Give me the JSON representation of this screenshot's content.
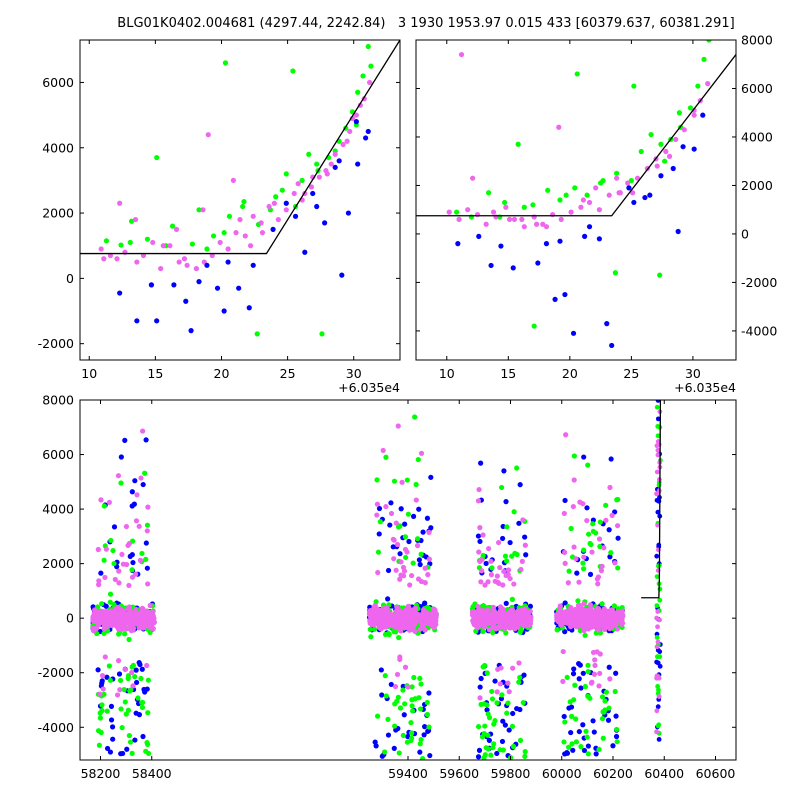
{
  "title": "BLG01K0402.004681 (4297.44, 2242.84)   3 1930 1953.97 0.015 433 [60379.637, 60381.291]",
  "colors": {
    "blue": "#0000ff",
    "green": "#00ff00",
    "violet": "#ee66ee",
    "model": "#000000"
  },
  "chart_data": [
    {
      "type": "scatter",
      "panel": "top-left zoom",
      "x_offset_label": "+6.035e4",
      "x_offset": 60350,
      "xlim": [
        9.3,
        33.5
      ],
      "ylim": [
        -2500,
        7300
      ],
      "xticks": [
        10,
        15,
        20,
        25,
        30
      ],
      "yticks": [
        -2000,
        0,
        2000,
        4000,
        6000
      ],
      "ytick_side": "left",
      "model_line": {
        "x": [
          9.3,
          23.4,
          33.5
        ],
        "y": [
          760,
          760,
          7300
        ]
      },
      "series": [
        {
          "color": "green",
          "x": [
            11.3,
            12.4,
            13.2,
            14.4,
            15.8,
            17.8,
            18.3,
            19.4,
            20.6,
            21.6,
            22.8,
            24.1,
            24.9,
            25.6,
            26.6,
            27.3,
            28.1,
            28.9,
            29.4,
            29.9,
            30.3,
            30.7,
            31.1,
            13.1,
            16.3,
            18.9,
            20.2,
            21.7,
            23.7,
            24.6,
            26.1,
            27.2,
            28.6,
            30.2,
            31.3,
            15.1,
            20.3,
            25.4,
            22.7,
            27.6
          ],
          "y": [
            1150,
            1020,
            1750,
            1200,
            1000,
            1050,
            2100,
            1300,
            1900,
            2200,
            1650,
            2500,
            3200,
            2200,
            3800,
            3300,
            3700,
            4200,
            4600,
            5100,
            5700,
            6200,
            7100,
            1100,
            1600,
            900,
            1400,
            2350,
            2100,
            2700,
            3000,
            3500,
            3900,
            4700,
            6500,
            3700,
            6600,
            6350,
            -1700,
            -1700
          ]
        },
        {
          "color": "violet",
          "x": [
            10.9,
            11.6,
            12.1,
            12.7,
            13.6,
            14.1,
            14.8,
            15.4,
            16.1,
            16.8,
            17.4,
            18.1,
            18.7,
            19.3,
            19.9,
            20.5,
            21.1,
            21.8,
            22.4,
            23.0,
            23.6,
            24.3,
            24.9,
            25.5,
            26.1,
            26.8,
            27.4,
            28.0,
            28.6,
            29.2,
            29.7,
            30.2,
            30.8,
            31.2,
            12.3,
            14.7,
            16.6,
            18.6,
            20.9,
            23.1,
            25.8,
            27.9,
            29.9,
            13.5,
            17.2,
            19.0,
            21.4,
            24.0,
            26.3,
            28.3,
            30.5,
            11.1,
            15.6,
            22.2,
            26.9,
            29.5
          ],
          "y": [
            900,
            700,
            600,
            800,
            500,
            700,
            1100,
            300,
            1000,
            500,
            400,
            300,
            500,
            700,
            1100,
            900,
            1400,
            1300,
            1900,
            1700,
            2200,
            1800,
            2100,
            2600,
            2400,
            2800,
            3100,
            3200,
            3800,
            4100,
            4500,
            5000,
            5500,
            6000,
            2300,
            -200,
            1500,
            2100,
            3000,
            1400,
            2900,
            3300,
            4900,
            1800,
            600,
            4400,
            1800,
            2300,
            2600,
            3500,
            5300,
            600,
            1000,
            1000,
            3100,
            4200
          ]
        },
        {
          "color": "blue",
          "x": [
            12.3,
            13.6,
            14.7,
            15.1,
            17.3,
            17.7,
            18.9,
            19.7,
            20.2,
            21.3,
            22.4,
            23.9,
            24.9,
            26.3,
            26.9,
            27.8,
            28.6,
            29.6,
            30.3,
            30.9,
            31.1,
            22.1,
            20.5,
            29.1,
            16.4,
            18.3,
            25.6,
            27.2,
            28.9,
            30.2,
            19.3
          ],
          "y": [
            -450,
            -1300,
            -200,
            -1300,
            -700,
            -1600,
            400,
            -300,
            -1000,
            -300,
            400,
            1500,
            2300,
            800,
            2600,
            1700,
            3400,
            2000,
            3500,
            4300,
            4500,
            -900,
            500,
            100,
            -200,
            -100,
            1900,
            2200,
            3600,
            4800,
            -2600
          ]
        }
      ]
    },
    {
      "type": "scatter",
      "panel": "top-right zoom",
      "x_offset_label": "+6.035e4",
      "x_offset": 60350,
      "xlim": [
        7.5,
        33.5
      ],
      "ylim": [
        -5200,
        8000
      ],
      "xticks": [
        10,
        15,
        20,
        25,
        30
      ],
      "yticks": [
        -4000,
        -2000,
        0,
        2000,
        4000,
        6000,
        8000
      ],
      "ytick_side": "right",
      "model_line": {
        "x": [
          7.5,
          23.4,
          33.5
        ],
        "y": [
          750,
          750,
          7400
        ]
      },
      "series": [
        {
          "color": "green",
          "x": [
            10.8,
            12.0,
            13.4,
            14.7,
            15.8,
            17.0,
            18.2,
            19.2,
            20.4,
            21.4,
            22.5,
            23.8,
            25.0,
            25.8,
            26.6,
            27.4,
            28.2,
            29.0,
            29.8,
            30.4,
            30.9,
            31.3,
            14.3,
            16.3,
            20.6,
            22.7,
            25.2,
            27.7,
            17.1,
            23.7,
            28.9,
            19.7,
            27.3
          ],
          "y": [
            900,
            700,
            1700,
            1300,
            3700,
            1200,
            1800,
            1400,
            1900,
            1600,
            2100,
            2500,
            2200,
            3400,
            4100,
            3700,
            3900,
            4400,
            5200,
            6100,
            7200,
            8000,
            700,
            1100,
            6600,
            2200,
            6100,
            3000,
            -3800,
            -1600,
            5000,
            1600,
            -1700
          ]
        },
        {
          "color": "violet",
          "x": [
            10.2,
            11.0,
            11.7,
            12.5,
            13.2,
            14.0,
            14.8,
            15.5,
            16.3,
            17.1,
            17.8,
            18.6,
            19.3,
            20.1,
            20.9,
            21.6,
            22.4,
            23.2,
            24.0,
            24.7,
            25.5,
            26.3,
            27.0,
            27.8,
            28.6,
            29.3,
            30.1,
            30.6,
            31.2,
            12.1,
            16.1,
            19.1,
            22.1,
            25.1,
            28.1,
            11.2,
            15.1,
            18.1,
            21.1,
            24.1,
            27.1,
            30.1,
            13.8,
            17.3,
            23.8
          ],
          "y": [
            900,
            600,
            1000,
            800,
            400,
            700,
            1100,
            600,
            300,
            700,
            400,
            800,
            600,
            900,
            1100,
            1300,
            1000,
            1600,
            1700,
            2100,
            2300,
            2700,
            3100,
            3400,
            3900,
            4300,
            4900,
            5500,
            6200,
            2300,
            600,
            4400,
            1900,
            1700,
            3200,
            7400,
            600,
            300,
            1400,
            1700,
            2800,
            5100,
            900,
            400,
            2300
          ]
        },
        {
          "color": "blue",
          "x": [
            10.9,
            12.6,
            13.6,
            14.4,
            15.4,
            17.4,
            18.1,
            18.8,
            19.6,
            20.3,
            21.2,
            22.4,
            23.0,
            23.4,
            25.2,
            26.5,
            27.4,
            28.4,
            29.2,
            30.1,
            30.8,
            19.2,
            24.8,
            21.6,
            26.1,
            28.8
          ],
          "y": [
            -400,
            -100,
            -1300,
            -500,
            -1400,
            -1200,
            -400,
            -2700,
            -2500,
            -4100,
            -100,
            -200,
            -3700,
            -4600,
            1300,
            1600,
            2400,
            2700,
            3600,
            3500,
            4900,
            -300,
            1900,
            300,
            1500,
            100
          ]
        }
      ]
    },
    {
      "type": "scatter",
      "panel": "bottom full light curve",
      "xlim": [
        58120,
        60680
      ],
      "ylim": [
        -5200,
        8000
      ],
      "xticks": [
        58200,
        58400,
        59400,
        59600,
        59800,
        60000,
        60200,
        60400,
        60600
      ],
      "yticks": [
        -4000,
        -2000,
        0,
        2000,
        4000,
        6000,
        8000
      ],
      "ytick_side": "left",
      "model_line": {
        "x": [
          60310,
          60379,
          60381,
          60385
        ],
        "y": [
          750,
          750,
          1500,
          8000
        ]
      },
      "season_ranges": [
        [
          58170,
          58410
        ],
        [
          59250,
          59510
        ],
        [
          59650,
          59880
        ],
        [
          59980,
          60240
        ]
      ],
      "event_column_x": [
        60370,
        60385
      ],
      "series": [
        {
          "color": "blue",
          "core_min": -1600,
          "core_max": 1600,
          "outlier_min": -5100,
          "outlier_max": 7000
        },
        {
          "color": "green",
          "core_min": -1700,
          "core_max": 1700,
          "outlier_min": -5200,
          "outlier_max": 8000
        },
        {
          "color": "violet",
          "core_min": -1200,
          "core_max": 1200,
          "outlier_min": -3000,
          "outlier_max": 7500
        }
      ]
    }
  ]
}
